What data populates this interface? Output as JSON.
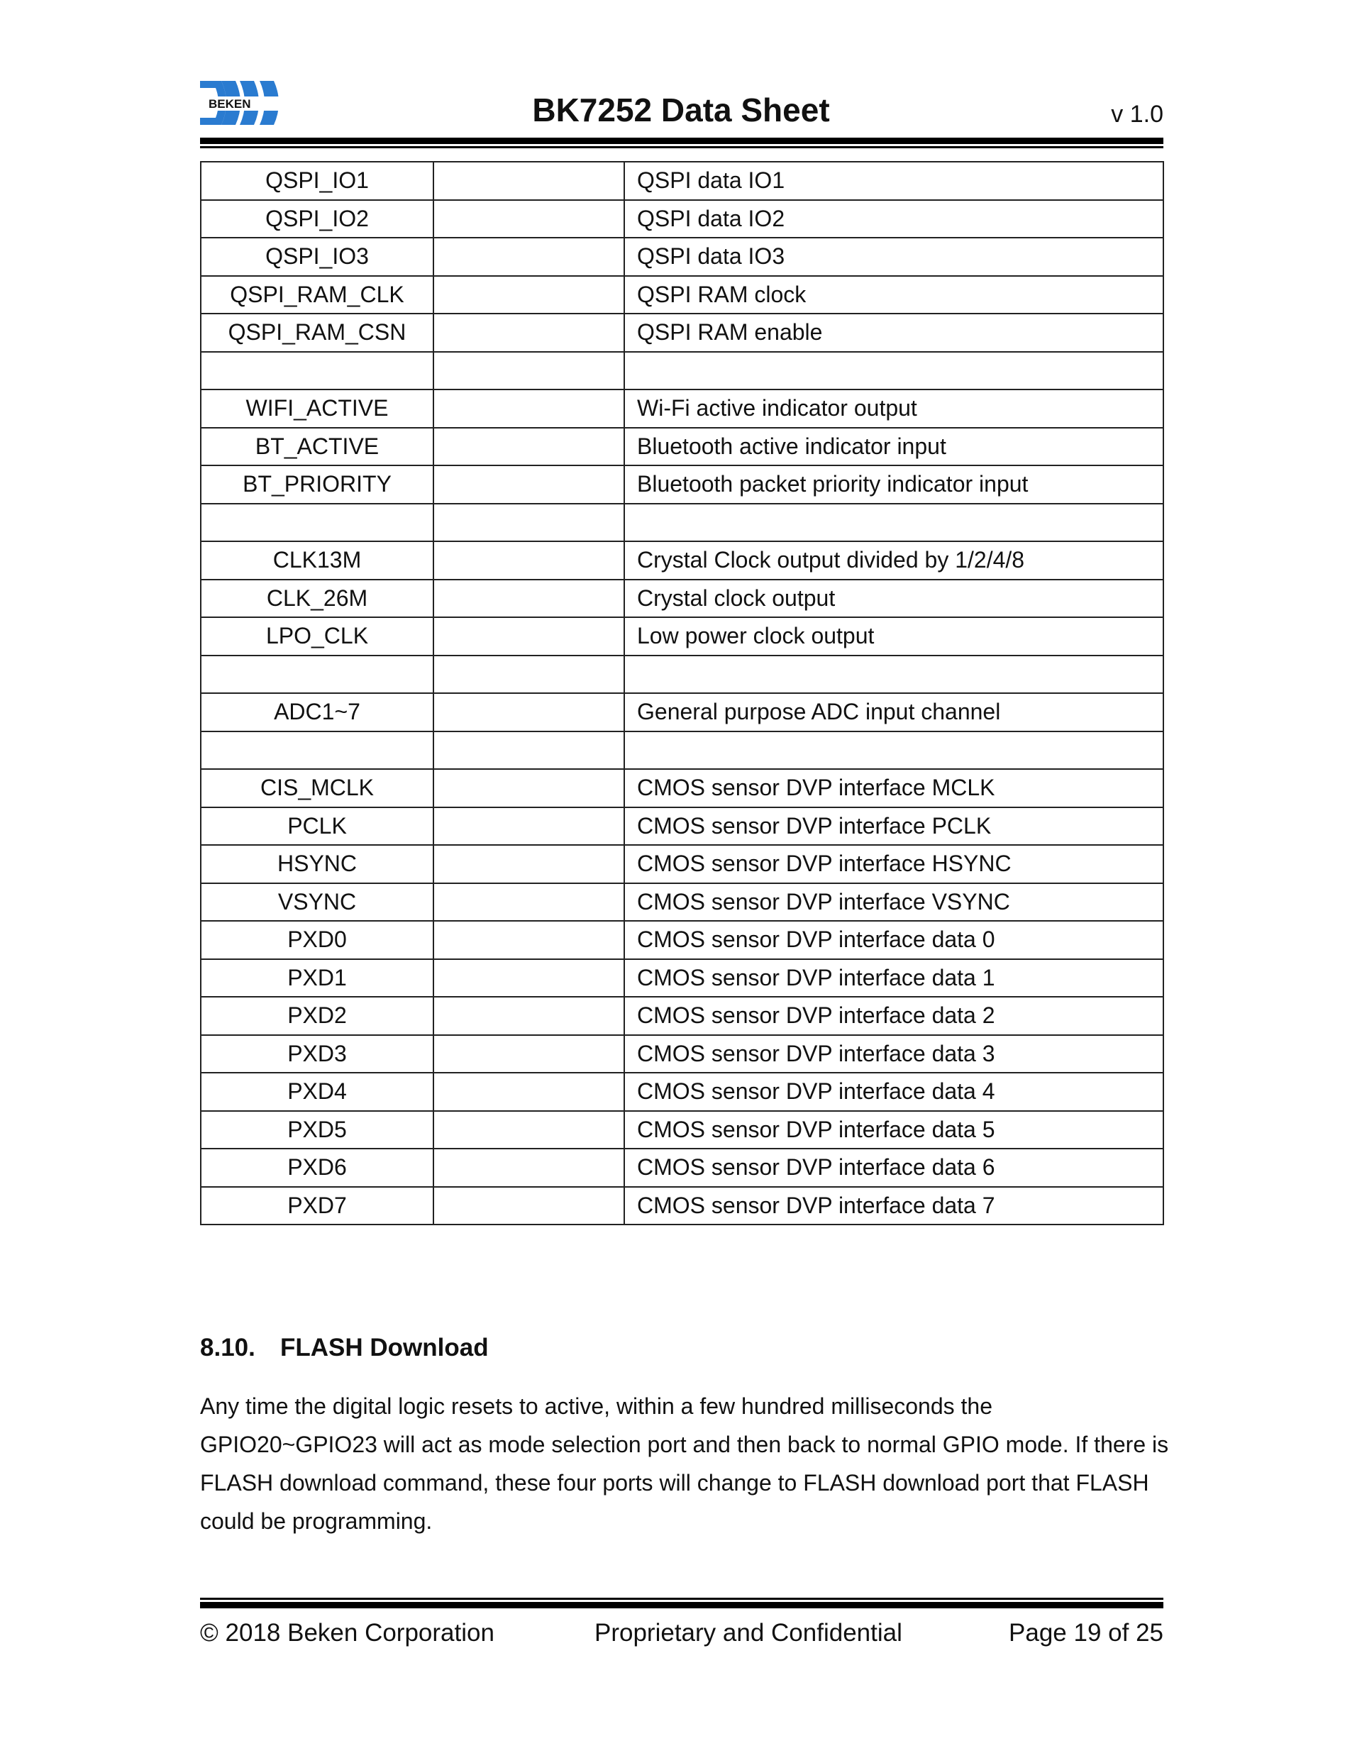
{
  "header": {
    "logo_text": "BEKEN",
    "title": "BK7252 Data Sheet",
    "version": "v 1.0"
  },
  "table": {
    "rows": [
      [
        "QSPI_IO1",
        "",
        "QSPI data IO1"
      ],
      [
        "QSPI_IO2",
        "",
        "QSPI data IO2"
      ],
      [
        "QSPI_IO3",
        "",
        "QSPI data IO3"
      ],
      [
        "QSPI_RAM_CLK",
        "",
        "QSPI RAM clock"
      ],
      [
        "QSPI_RAM_CSN",
        "",
        "QSPI RAM enable"
      ],
      [
        "",
        "",
        ""
      ],
      [
        "WIFI_ACTIVE",
        "",
        "Wi-Fi active indicator output"
      ],
      [
        "BT_ACTIVE",
        "",
        "Bluetooth active indicator input"
      ],
      [
        "BT_PRIORITY",
        "",
        "Bluetooth packet priority indicator input"
      ],
      [
        "",
        "",
        ""
      ],
      [
        "CLK13M",
        "",
        "Crystal Clock output divided by 1/2/4/8"
      ],
      [
        "CLK_26M",
        "",
        "Crystal clock output"
      ],
      [
        "LPO_CLK",
        "",
        "Low power clock output"
      ],
      [
        "",
        "",
        ""
      ],
      [
        "ADC1~7",
        "",
        "General purpose ADC input channel"
      ],
      [
        "",
        "",
        ""
      ],
      [
        "CIS_MCLK",
        "",
        "CMOS sensor DVP interface MCLK"
      ],
      [
        "PCLK",
        "",
        "CMOS sensor DVP interface PCLK"
      ],
      [
        "HSYNC",
        "",
        "CMOS sensor DVP interface HSYNC"
      ],
      [
        "VSYNC",
        "",
        "CMOS sensor DVP interface VSYNC"
      ],
      [
        "PXD0",
        "",
        "CMOS sensor DVP interface data 0"
      ],
      [
        "PXD1",
        "",
        "CMOS sensor DVP interface data 1"
      ],
      [
        "PXD2",
        "",
        "CMOS sensor DVP interface data 2"
      ],
      [
        "PXD3",
        "",
        "CMOS sensor DVP interface data 3"
      ],
      [
        "PXD4",
        "",
        "CMOS sensor DVP interface data 4"
      ],
      [
        "PXD5",
        "",
        "CMOS sensor DVP interface data 5"
      ],
      [
        "PXD6",
        "",
        "CMOS sensor DVP interface data 6"
      ],
      [
        "PXD7",
        "",
        "CMOS sensor DVP interface data 7"
      ]
    ]
  },
  "section": {
    "number": "8.10.",
    "title": "FLASH Download",
    "paragraph": "Any time the digital logic resets to active, within a few hundred milliseconds the GPIO20~GPIO23 will act as mode selection port and then back to normal GPIO mode. If there is FLASH download command, these four ports will change to FLASH download port that FLASH could be programming."
  },
  "footer": {
    "copyright": "© 2018 Beken Corporation",
    "confidential": "Proprietary and Confidential",
    "page": "Page 19 of 25"
  },
  "colors": {
    "logo_blue": "#2a7bd0"
  }
}
